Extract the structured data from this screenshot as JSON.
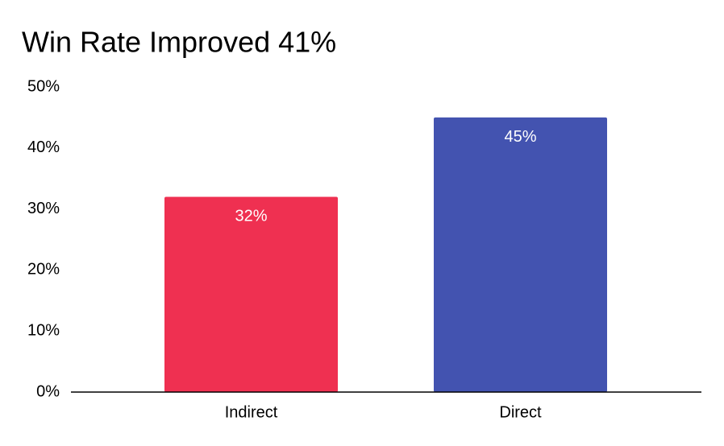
{
  "chart_data": {
    "type": "bar",
    "title": "Win Rate Improved 41%",
    "categories": [
      "Indirect",
      "Direct"
    ],
    "values": [
      32,
      45
    ],
    "value_labels": [
      "32%",
      "45%"
    ],
    "colors": [
      "#ef3051",
      "#4353b0"
    ],
    "ylim": [
      0,
      50
    ],
    "yticks": [
      {
        "value": 0,
        "label": "0%"
      },
      {
        "value": 10,
        "label": "10%"
      },
      {
        "value": 20,
        "label": "20%"
      },
      {
        "value": 30,
        "label": "30%"
      },
      {
        "value": 40,
        "label": "40%"
      },
      {
        "value": 50,
        "label": "50%"
      }
    ],
    "grid": false
  }
}
